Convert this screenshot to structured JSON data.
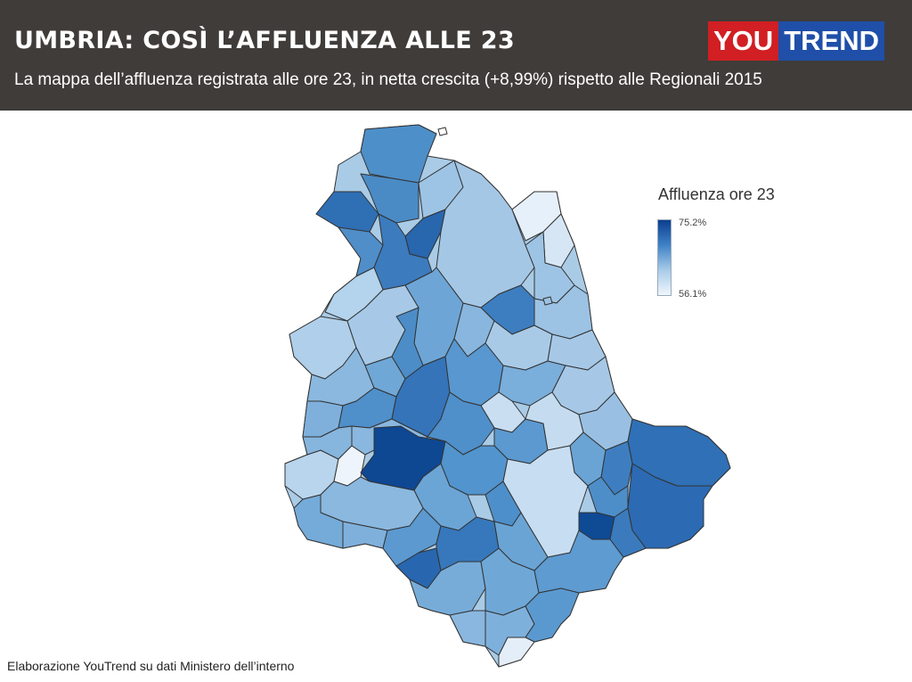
{
  "header": {
    "title": "UMBRIA: COSÌ L’AFFLUENZA ALLE 23",
    "subtitle": "La mappa dell’affluenza registrata alle ore 23, in netta crescita (+8,99%) rispetto alle Regionali 2015"
  },
  "logo": {
    "you": "YOU",
    "trend": "TREND"
  },
  "legend": {
    "title": "Affluenza ore 23",
    "max": "75.2%",
    "min": "56.1%"
  },
  "source": "Elaborazione YouTrend su dati Ministero dell’interno",
  "colors": {
    "header_bg": "#403c39",
    "scale_high": "#0b3f8f",
    "scale_low": "#f0f6fd",
    "border": "#333333"
  }
}
